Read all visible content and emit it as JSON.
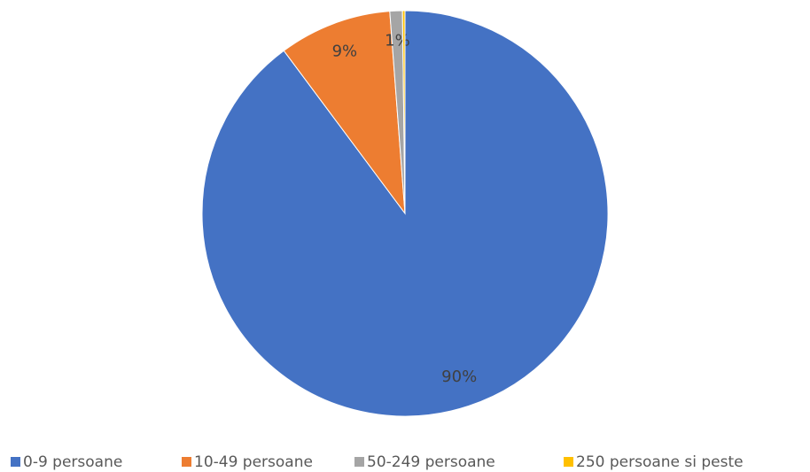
{
  "chart_data": {
    "type": "pie",
    "categories": [
      "0-9 persoane",
      "10-49 persoane",
      "50-249 persoane",
      "250 persoane si peste"
    ],
    "values": [
      90,
      9,
      1,
      0.2
    ],
    "value_labels": [
      "90%",
      "9%",
      "1%",
      null
    ],
    "colors": [
      "#4472c4",
      "#ed7d31",
      "#a5a5a5",
      "#ffc000"
    ],
    "legend": "bottom"
  }
}
